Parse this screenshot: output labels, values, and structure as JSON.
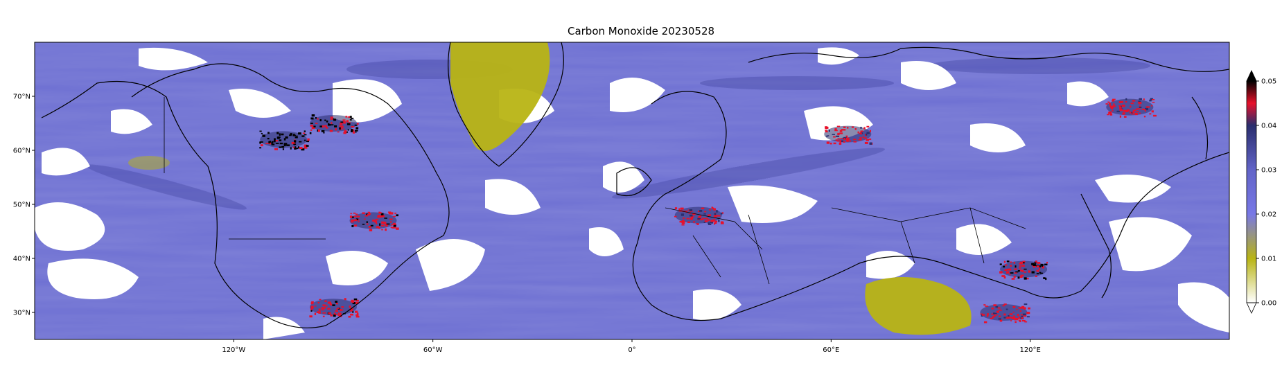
{
  "title": "Carbon Monoxide 20230528",
  "map": {
    "projection": "PlateCarree",
    "lon_range": [
      -180,
      180
    ],
    "lat_range": [
      25,
      80
    ],
    "lat_ticks": [
      {
        "value": 30,
        "label": "30°N"
      },
      {
        "value": 40,
        "label": "40°N"
      },
      {
        "value": 50,
        "label": "50°N"
      },
      {
        "value": 60,
        "label": "60°N"
      },
      {
        "value": 70,
        "label": "70°N"
      }
    ],
    "lon_ticks": [
      {
        "value": -120,
        "label": "120°W"
      },
      {
        "value": -60,
        "label": "60°W"
      },
      {
        "value": 0,
        "label": "0°"
      },
      {
        "value": 60,
        "label": "60°E"
      },
      {
        "value": 120,
        "label": "120°E"
      }
    ],
    "base_color": "#6d6fd2",
    "cloud_gap_color": "#ffffff"
  },
  "colorbar": {
    "ticks": [
      {
        "value": 0.0,
        "label": "0.00"
      },
      {
        "value": 0.01,
        "label": "0.01"
      },
      {
        "value": 0.02,
        "label": "0.02"
      },
      {
        "value": 0.03,
        "label": "0.03"
      },
      {
        "value": 0.04,
        "label": "0.04"
      },
      {
        "value": 0.05,
        "label": "0.05"
      }
    ],
    "range": [
      0.0,
      0.05
    ],
    "stops": [
      {
        "value": 0.0,
        "color": "#ffffff"
      },
      {
        "value": 0.01,
        "color": "#b8b414"
      },
      {
        "value": 0.02,
        "color": "#7878e6"
      },
      {
        "value": 0.03,
        "color": "#6264c8"
      },
      {
        "value": 0.04,
        "color": "#2a2e6e"
      },
      {
        "value": 0.045,
        "color": "#e8102a"
      },
      {
        "value": 0.05,
        "color": "#000000"
      }
    ]
  },
  "features": {
    "high_co_plumes": [
      {
        "name": "Canada wildfire plume",
        "lon": -105,
        "lat": 62,
        "value": 0.05
      },
      {
        "name": "Canada fire smoke",
        "lon": -90,
        "lat": 65,
        "value": 0.048
      },
      {
        "name": "Great Lakes smoke",
        "lon": -78,
        "lat": 47,
        "value": 0.046
      },
      {
        "name": "Gulf coast plume",
        "lon": -90,
        "lat": 31,
        "value": 0.046
      },
      {
        "name": "Central Europe",
        "lon": 20,
        "lat": 48,
        "value": 0.045
      },
      {
        "name": "North China plain",
        "lon": 118,
        "lat": 38,
        "value": 0.047
      },
      {
        "name": "Southern China",
        "lon": 112,
        "lat": 30,
        "value": 0.045
      },
      {
        "name": "East Siberia",
        "lon": 150,
        "lat": 68,
        "value": 0.045
      },
      {
        "name": "West Siberia",
        "lon": 65,
        "lat": 63,
        "value": 0.045
      }
    ],
    "low_co_areas": [
      {
        "name": "Greenland",
        "lon": -40,
        "lat": 75,
        "value": 0.012
      },
      {
        "name": "Tibetan Plateau",
        "lon": 88,
        "lat": 33,
        "value": 0.011
      }
    ]
  }
}
